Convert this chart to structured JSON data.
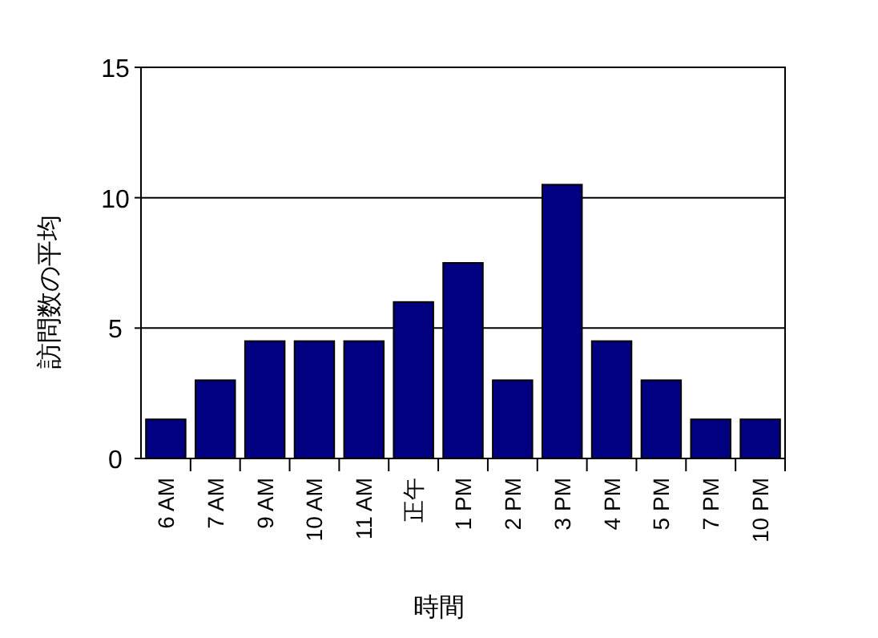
{
  "chart_data": {
    "type": "bar",
    "xlabel": "時間",
    "ylabel": "訪問数の平均",
    "categories": [
      "6 AM",
      "7 AM",
      "9 AM",
      "10 AM",
      "11 AM",
      "正午",
      "1 PM",
      "2 PM",
      "3 PM",
      "4 PM",
      "5 PM",
      "7 PM",
      "10 PM"
    ],
    "values": [
      1.5,
      3,
      4.5,
      4.5,
      4.5,
      6,
      7.5,
      3,
      10.5,
      4.5,
      3,
      1.5,
      1.5
    ],
    "color": "#000080",
    "ylim": [
      0,
      15
    ],
    "yticks": [
      0,
      5,
      10,
      15
    ],
    "grid": "y"
  }
}
